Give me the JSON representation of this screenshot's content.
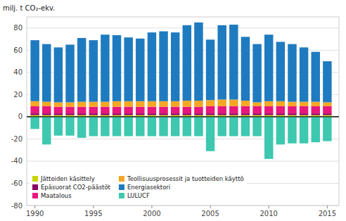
{
  "chart_data": {
    "type": "bar",
    "stacked": true,
    "ylabel": "milj. t CO₂-ekv.",
    "x": [
      1990,
      1991,
      1992,
      1993,
      1994,
      1995,
      1996,
      1997,
      1998,
      1999,
      2000,
      2001,
      2002,
      2003,
      2004,
      2005,
      2006,
      2007,
      2008,
      2009,
      2010,
      2011,
      2012,
      2013,
      2014,
      2015
    ],
    "xlim": [
      1989.3,
      2016
    ],
    "xticks": [
      1990,
      1995,
      2000,
      2005,
      2010,
      2015
    ],
    "ylim": [
      -80,
      90
    ],
    "yticks": [
      -80,
      -60,
      -40,
      -20,
      0,
      20,
      40,
      60,
      80
    ],
    "grid": true,
    "legend": "lower left",
    "series": [
      {
        "name": "Jätteiden käsittely",
        "color": "#c8d400",
        "values": [
          1.5,
          1.5,
          1.5,
          1.5,
          1.5,
          1.5,
          1.5,
          1.5,
          1.5,
          1.5,
          1.5,
          1.5,
          1.5,
          1.5,
          1.5,
          1.5,
          1.5,
          1.5,
          1.5,
          1.5,
          1.5,
          1.5,
          1.5,
          1.5,
          1.5,
          1.5
        ]
      },
      {
        "name": "Epäsuorat CO2-päästöt",
        "color": "#8b0066",
        "values": [
          1.5,
          1.5,
          1.5,
          1.5,
          1.5,
          1.5,
          1.5,
          1.5,
          1.5,
          1.5,
          1.5,
          1.5,
          1.5,
          1.5,
          1.5,
          1.5,
          1.5,
          1.5,
          1.5,
          1.5,
          1.5,
          1.5,
          1.5,
          1.5,
          1.5,
          1.5
        ]
      },
      {
        "name": "Maatalous",
        "color": "#e8177d",
        "values": [
          6.5,
          6.5,
          6.0,
          6.0,
          6.0,
          6.0,
          6.0,
          6.0,
          6.0,
          6.0,
          6.0,
          6.0,
          6.0,
          6.0,
          6.0,
          6.5,
          6.5,
          6.5,
          6.5,
          6.5,
          6.5,
          6.5,
          6.5,
          6.5,
          6.5,
          6.5
        ]
      },
      {
        "name": "Teollisuusprosessit ja tuotteiden käyttö",
        "color": "#f5a623",
        "values": [
          4.5,
          4.0,
          4.0,
          4.0,
          4.5,
          4.5,
          4.5,
          5.0,
          5.0,
          5.0,
          5.0,
          5.0,
          5.0,
          5.5,
          5.5,
          5.5,
          6.0,
          6.0,
          5.0,
          3.5,
          4.5,
          4.5,
          4.0,
          4.0,
          4.0,
          3.5
        ]
      },
      {
        "name": "Energiasektori",
        "color": "#1f7bbf",
        "values": [
          55.0,
          52.0,
          49.5,
          52.0,
          57.5,
          55.5,
          60.5,
          59.5,
          57.5,
          56.5,
          62.0,
          63.0,
          62.0,
          68.0,
          70.5,
          54.5,
          67.0,
          67.5,
          57.5,
          52.5,
          60.0,
          53.5,
          52.0,
          49.0,
          45.0,
          37.0
        ]
      },
      {
        "name": "LULUCF",
        "color": "#3ec8b0",
        "values": [
          -11.0,
          -25.0,
          -17.0,
          -17.0,
          -19.0,
          -17.5,
          -17.5,
          -17.5,
          -17.5,
          -17.5,
          -17.5,
          -17.5,
          -17.5,
          -17.5,
          -17.5,
          -31.0,
          -17.5,
          -17.5,
          -17.5,
          -17.5,
          -38.0,
          -25.0,
          -24.0,
          -24.0,
          -23.0,
          -22.0
        ]
      }
    ]
  }
}
